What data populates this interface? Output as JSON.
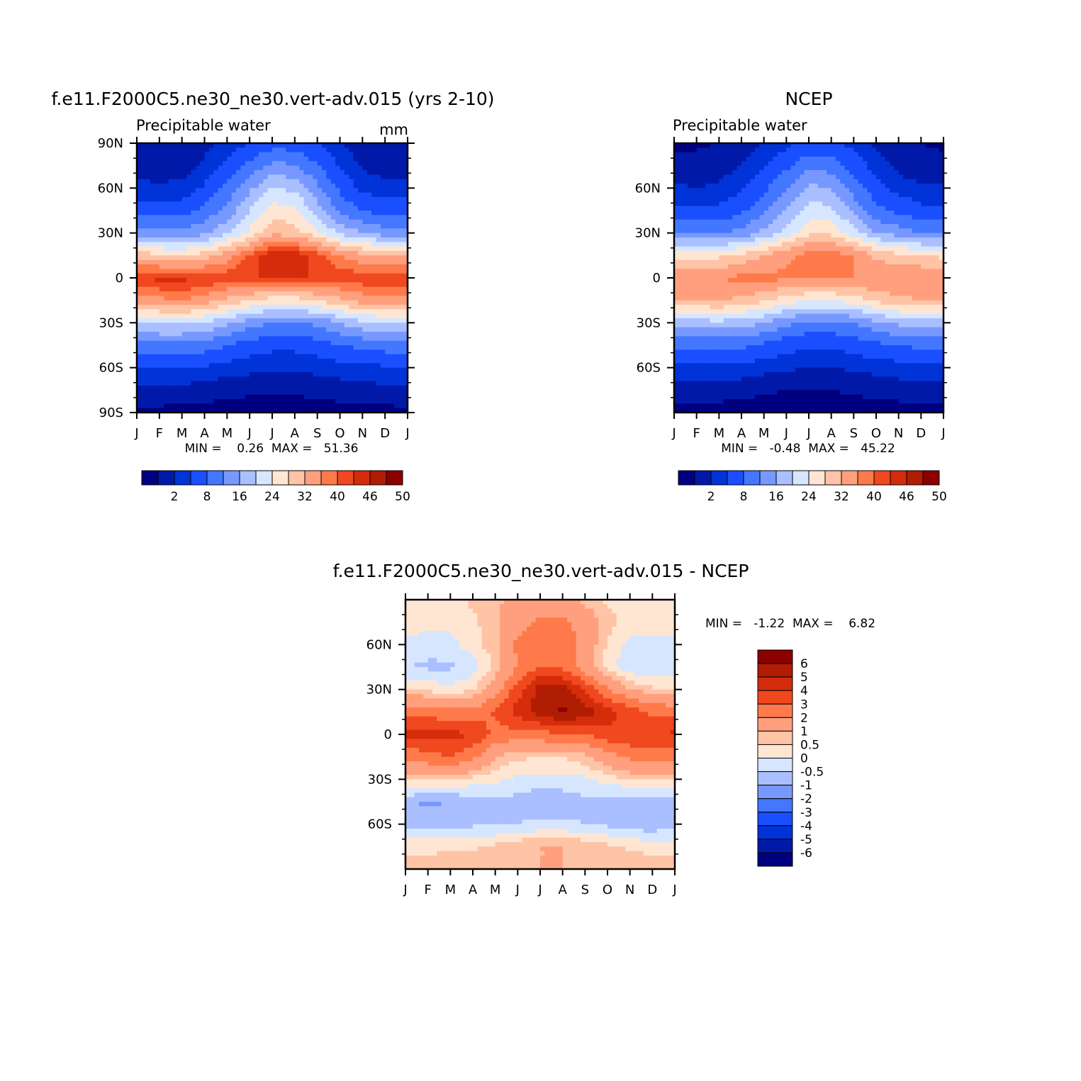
{
  "colors": {
    "precip_levels": [
      "#000080",
      "#0019a8",
      "#0033d8",
      "#1a4fff",
      "#4477ff",
      "#7799ff",
      "#aabfff",
      "#d6e6ff",
      "#ffe6d2",
      "#ffc3a6",
      "#ff9f7d",
      "#ff7a4a",
      "#f0481f",
      "#d52c0b",
      "#b01d03",
      "#8c0000"
    ],
    "diff_levels": [
      "#000080",
      "#0019a8",
      "#0033d8",
      "#1a4fff",
      "#4477ff",
      "#7799ff",
      "#aabfff",
      "#d6e6ff",
      "#ffe6d2",
      "#ffc3a6",
      "#ff9f7d",
      "#ff7a4a",
      "#f0481f",
      "#d52c0b",
      "#b01d03",
      "#8c0000"
    ]
  },
  "panels": [
    {
      "id": "model",
      "title": "f.e11.F2000C5.ne30_ne30.vert-adv.015 (yrs 2-10)",
      "subtitle": "Precipitable water",
      "units": "mm",
      "minmax": "MIN =    0.26  MAX =   51.36",
      "ytick_labels": [
        "90N",
        "60N",
        "30N",
        "0",
        "30S",
        "60S",
        "90S"
      ],
      "xtick_labels": [
        "J",
        "F",
        "M",
        "A",
        "M",
        "J",
        "J",
        "A",
        "S",
        "O",
        "N",
        "D",
        "J"
      ],
      "colorbar_labels": [
        "2",
        "8",
        "16",
        "24",
        "32",
        "40",
        "46",
        "50"
      ]
    },
    {
      "id": "obs",
      "title": "NCEP",
      "subtitle": "Precipitable water",
      "units": "",
      "minmax": "MIN =   -0.48  MAX =   45.22",
      "ytick_labels": [
        "60N",
        "30N",
        "0",
        "30S",
        "60S"
      ],
      "xtick_labels": [
        "J",
        "F",
        "M",
        "A",
        "M",
        "J",
        "J",
        "A",
        "S",
        "O",
        "N",
        "D",
        "J"
      ],
      "colorbar_labels": [
        "2",
        "8",
        "16",
        "24",
        "32",
        "40",
        "46",
        "50"
      ]
    },
    {
      "id": "diff",
      "title": "f.e11.F2000C5.ne30_ne30.vert-adv.015 - NCEP",
      "subtitle": "",
      "units": "",
      "minmax": "MIN =   -1.22  MAX =    6.82",
      "ytick_labels": [
        "60N",
        "30N",
        "0",
        "30S",
        "60S"
      ],
      "xtick_labels": [
        "J",
        "F",
        "M",
        "A",
        "M",
        "J",
        "J",
        "A",
        "S",
        "O",
        "N",
        "D",
        "J"
      ],
      "colorbar_labels": [
        "6",
        "5",
        "4",
        "3",
        "2",
        "1",
        "0.5",
        "0",
        "-0.5",
        "-1",
        "-2",
        "-3",
        "-4",
        "-5",
        "-6"
      ]
    }
  ],
  "chart_data": [
    {
      "type": "heatmap",
      "title": "f.e11.F2000C5.ne30_ne30.vert-adv.015 (yrs 2-10)",
      "subtitle": "Precipitable water",
      "units": "mm",
      "x": [
        "J",
        "F",
        "M",
        "A",
        "M",
        "J",
        "J",
        "A",
        "S",
        "O",
        "N",
        "D",
        "J"
      ],
      "y": [
        90,
        75,
        60,
        45,
        30,
        15,
        0,
        -15,
        -30,
        -45,
        -60,
        -75,
        -90
      ],
      "levels": [
        2,
        5,
        8,
        12,
        16,
        20,
        24,
        28,
        32,
        36,
        40,
        43,
        46,
        48,
        50
      ],
      "min": 0.26,
      "max": 51.36,
      "values": [
        [
          2.5,
          2,
          2.5,
          4,
          6,
          8,
          10,
          10,
          8,
          5.5,
          3,
          2.5,
          2.5
        ],
        [
          3.5,
          3,
          3.5,
          5.5,
          9,
          13,
          17,
          16.5,
          12,
          7.5,
          4.5,
          3.5,
          3.5
        ],
        [
          6,
          5.5,
          6,
          8.5,
          13,
          19,
          24,
          23,
          17,
          11,
          7,
          6,
          6
        ],
        [
          10,
          10,
          10,
          13,
          17,
          24,
          30,
          29,
          22,
          15,
          12,
          10,
          10
        ],
        [
          18,
          17,
          17,
          19,
          23,
          29,
          35,
          34,
          29,
          23,
          20,
          18,
          18
        ],
        [
          35,
          33,
          32,
          34,
          38,
          44,
          48,
          48,
          45,
          40,
          37,
          36,
          35
        ],
        [
          46,
          47,
          47,
          46,
          45,
          46,
          46,
          46,
          46,
          45,
          45,
          46,
          46
        ],
        [
          38,
          39,
          40,
          38,
          35,
          32,
          30,
          30,
          32,
          35,
          38,
          39,
          38
        ],
        [
          24,
          25,
          25,
          24,
          21,
          18,
          16,
          16,
          17,
          20,
          23,
          24,
          24
        ],
        [
          14,
          15,
          15,
          14,
          12,
          10,
          9,
          9,
          10,
          12,
          13,
          14,
          14
        ],
        [
          8,
          8,
          8,
          7.5,
          6.5,
          6,
          5.5,
          5.5,
          6,
          6.5,
          7,
          7.5,
          8
        ],
        [
          4,
          4,
          4,
          3.5,
          3,
          2.5,
          2.5,
          2.5,
          3,
          3.5,
          4,
          4,
          4
        ],
        [
          1.2,
          1.2,
          1,
          0.8,
          0.6,
          0.5,
          0.4,
          0.4,
          0.5,
          0.6,
          0.8,
          1.1,
          1.2
        ]
      ]
    },
    {
      "type": "heatmap",
      "title": "NCEP",
      "subtitle": "Precipitable water",
      "x": [
        "J",
        "F",
        "M",
        "A",
        "M",
        "J",
        "J",
        "A",
        "S",
        "O",
        "N",
        "D",
        "J"
      ],
      "y": [
        90,
        75,
        60,
        45,
        30,
        15,
        0,
        -15,
        -30,
        -45,
        -60,
        -75,
        -90
      ],
      "levels": [
        2,
        5,
        8,
        12,
        16,
        20,
        24,
        28,
        32,
        36,
        40,
        43,
        46,
        48,
        50
      ],
      "min": -0.48,
      "max": 45.22,
      "values": [
        [
          1.5,
          1.5,
          2,
          3,
          5,
          7,
          9,
          9,
          7,
          4.5,
          2.5,
          2,
          1.5
        ],
        [
          3,
          3,
          3.5,
          5,
          8,
          11,
          15,
          14,
          10,
          6.5,
          4,
          3,
          3
        ],
        [
          5.5,
          5,
          5.5,
          7.5,
          11,
          16,
          21,
          20,
          14,
          9.5,
          6.5,
          5.5,
          5.5
        ],
        [
          9,
          9,
          9,
          11,
          15,
          20,
          26,
          25,
          19,
          13,
          11,
          9,
          9
        ],
        [
          16,
          16,
          16,
          17,
          21,
          26,
          31,
          31,
          26,
          20,
          18,
          16,
          16
        ],
        [
          31,
          31,
          31,
          33,
          36,
          39,
          42,
          42,
          40,
          35,
          33,
          32,
          31
        ],
        [
          40,
          40,
          40,
          41,
          41,
          41,
          40,
          40,
          40,
          40,
          40,
          40,
          40
        ],
        [
          36,
          36,
          36,
          35,
          33,
          30,
          28,
          28,
          30,
          33,
          35,
          36,
          36
        ],
        [
          22,
          22,
          23,
          22,
          20,
          17,
          15,
          15,
          16,
          19,
          21,
          22,
          22
        ],
        [
          13,
          13,
          13,
          13,
          11,
          9.5,
          8.5,
          8.5,
          9.5,
          11,
          12,
          13,
          13
        ],
        [
          7,
          7,
          7,
          7,
          6,
          5.5,
          5,
          5,
          5.5,
          6,
          6.5,
          7,
          7
        ],
        [
          3.5,
          3.5,
          3.5,
          3,
          2.5,
          2,
          2,
          2,
          2.5,
          3,
          3.5,
          3.5,
          3.5
        ],
        [
          0.8,
          0.8,
          0.6,
          0.5,
          0.3,
          0.2,
          0.2,
          0.2,
          0.3,
          0.4,
          0.5,
          0.7,
          0.8
        ]
      ]
    },
    {
      "type": "heatmap",
      "title": "f.e11.F2000C5.ne30_ne30.vert-adv.015 - NCEP",
      "x": [
        "J",
        "F",
        "M",
        "A",
        "M",
        "J",
        "J",
        "A",
        "S",
        "O",
        "N",
        "D",
        "J"
      ],
      "y": [
        90,
        75,
        60,
        45,
        30,
        15,
        0,
        -15,
        -30,
        -45,
        -60,
        -75,
        -90
      ],
      "levels": [
        -6,
        -5,
        -4,
        -3,
        -2,
        -1,
        -0.5,
        0,
        0.5,
        1,
        2,
        3,
        4,
        5,
        6
      ],
      "min": -1.22,
      "max": 6.82,
      "values": [
        [
          0.4,
          0.3,
          0.3,
          0.6,
          0.9,
          1.2,
          1.4,
          1.3,
          0.8,
          0.4,
          0.3,
          0.4,
          0.4
        ],
        [
          0.3,
          0.2,
          0.2,
          0.4,
          0.8,
          1.6,
          2.2,
          2.2,
          1.6,
          0.7,
          0.3,
          0.3,
          0.3
        ],
        [
          -0.2,
          -0.3,
          -0.2,
          0.3,
          0.8,
          2.2,
          2.8,
          2.6,
          1.6,
          0.4,
          -0.2,
          -0.2,
          -0.2
        ],
        [
          -0.5,
          -0.6,
          -0.6,
          -0.3,
          0.6,
          2.0,
          3.0,
          2.8,
          1.4,
          0.3,
          -0.4,
          -0.5,
          -0.5
        ],
        [
          0.5,
          0.3,
          0.2,
          0.4,
          1.5,
          3.5,
          5.5,
          5.5,
          3.8,
          2.0,
          1.0,
          0.6,
          0.5
        ],
        [
          2.5,
          2.5,
          2.2,
          2.2,
          3.2,
          4.5,
          5.5,
          6.2,
          5.6,
          4.5,
          3.5,
          2.8,
          2.5
        ],
        [
          4.2,
          4.4,
          4.4,
          4.0,
          2.6,
          2.5,
          2.6,
          2.8,
          3.0,
          3.6,
          3.8,
          4.0,
          4.2
        ],
        [
          2.2,
          2.6,
          3.0,
          2.2,
          1.0,
          0.6,
          0.5,
          0.5,
          0.8,
          1.6,
          2.2,
          2.6,
          2.2
        ],
        [
          0.6,
          0.6,
          0.6,
          0.3,
          0.1,
          -0.1,
          -0.2,
          -0.2,
          -0.1,
          0.2,
          0.5,
          0.6,
          0.6
        ],
        [
          -0.9,
          -1.1,
          -1.0,
          -0.8,
          -0.6,
          -0.7,
          -0.9,
          -0.8,
          -0.6,
          -0.8,
          -0.9,
          -0.9,
          -0.9
        ],
        [
          -0.7,
          -0.7,
          -0.6,
          -0.6,
          -0.6,
          -0.5,
          -0.4,
          -0.4,
          -0.5,
          -0.6,
          -0.8,
          -0.9,
          -0.7
        ],
        [
          0.3,
          0.3,
          0.4,
          0.4,
          0.6,
          0.9,
          1.0,
          1.0,
          0.9,
          0.6,
          0.4,
          0.3,
          0.3
        ],
        [
          0.8,
          0.8,
          0.9,
          0.9,
          1.0,
          1.0,
          1.0,
          1.0,
          1.0,
          0.9,
          0.9,
          0.8,
          0.8
        ]
      ]
    }
  ]
}
